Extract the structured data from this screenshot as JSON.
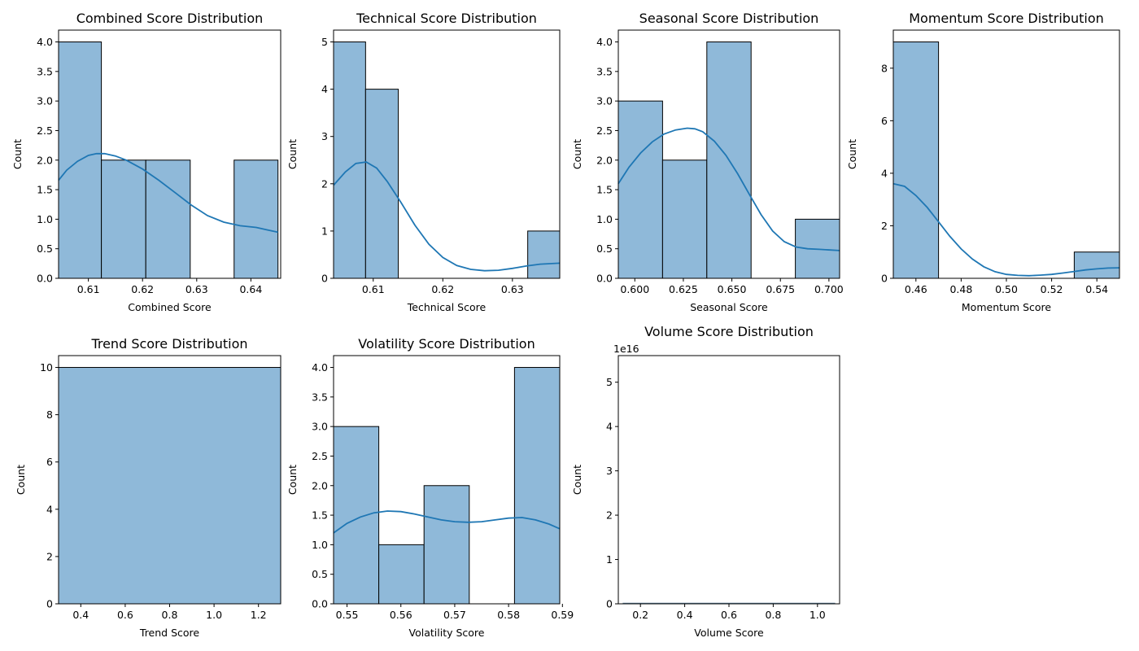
{
  "chart_data": [
    {
      "type": "histogram",
      "title": "Combined Score Distribution",
      "xlabel": "Combined Score",
      "ylabel": "Count",
      "xlim": [
        0.6045,
        0.6455
      ],
      "ylim": [
        0,
        4.2
      ],
      "xticks": [
        0.61,
        0.62,
        0.63,
        0.64
      ],
      "xtick_labels": [
        "0.61",
        "0.62",
        "0.63",
        "0.64"
      ],
      "yticks": [
        0,
        0.5,
        1,
        1.5,
        2,
        2.5,
        3,
        3.5,
        4
      ],
      "ytick_labels": [
        "0.0",
        "0.5",
        "1.0",
        "1.5",
        "2.0",
        "2.5",
        "3.0",
        "3.5",
        "4.0"
      ],
      "bin_edges": [
        0.6045,
        0.6124,
        0.6206,
        0.6288,
        0.6369,
        0.645
      ],
      "counts": [
        4,
        2,
        2,
        0,
        2
      ],
      "kde": {
        "x": [
          0.6045,
          0.606,
          0.608,
          0.61,
          0.6115,
          0.613,
          0.615,
          0.617,
          0.62,
          0.623,
          0.626,
          0.629,
          0.632,
          0.635,
          0.638,
          0.641,
          0.643,
          0.645
        ],
        "y": [
          1.66,
          1.83,
          1.98,
          2.08,
          2.11,
          2.11,
          2.07,
          2.0,
          1.85,
          1.66,
          1.45,
          1.24,
          1.06,
          0.95,
          0.89,
          0.86,
          0.82,
          0.78
        ]
      }
    },
    {
      "type": "histogram",
      "title": "Technical Score Distribution",
      "xlabel": "Technical Score",
      "ylabel": "Count",
      "xlim": [
        0.6043,
        0.6368
      ],
      "ylim": [
        0,
        5.25
      ],
      "xticks": [
        0.61,
        0.62,
        0.63
      ],
      "xtick_labels": [
        "0.61",
        "0.62",
        "0.63"
      ],
      "yticks": [
        0,
        1,
        2,
        3,
        4,
        5
      ],
      "ytick_labels": [
        "0",
        "1",
        "2",
        "3",
        "4",
        "5"
      ],
      "bin_edges": [
        0.6043,
        0.6089,
        0.6136,
        0.6182,
        0.6229,
        0.6275,
        0.6322,
        0.6368
      ],
      "counts": [
        5,
        4,
        0,
        0,
        0,
        0,
        1
      ],
      "kde": {
        "x": [
          0.6043,
          0.606,
          0.6075,
          0.609,
          0.6105,
          0.612,
          0.614,
          0.616,
          0.618,
          0.62,
          0.622,
          0.624,
          0.626,
          0.628,
          0.63,
          0.632,
          0.634,
          0.6368
        ],
        "y": [
          1.97,
          2.25,
          2.43,
          2.46,
          2.33,
          2.05,
          1.6,
          1.12,
          0.72,
          0.44,
          0.27,
          0.19,
          0.16,
          0.17,
          0.21,
          0.26,
          0.3,
          0.32
        ]
      }
    },
    {
      "type": "histogram",
      "title": "Seasonal Score Distribution",
      "xlabel": "Seasonal Score",
      "ylabel": "Count",
      "xlim": [
        0.5915,
        0.7055
      ],
      "ylim": [
        0,
        4.2
      ],
      "xticks": [
        0.6,
        0.625,
        0.65,
        0.675,
        0.7
      ],
      "xtick_labels": [
        "0.600",
        "0.625",
        "0.650",
        "0.675",
        "0.700"
      ],
      "yticks": [
        0,
        0.5,
        1,
        1.5,
        2,
        2.5,
        3,
        3.5,
        4
      ],
      "ytick_labels": [
        "0.0",
        "0.5",
        "1.0",
        "1.5",
        "2.0",
        "2.5",
        "3.0",
        "3.5",
        "4.0"
      ],
      "bin_edges": [
        0.5915,
        0.6143,
        0.6371,
        0.6599,
        0.6827,
        0.7055
      ],
      "counts": [
        3,
        2,
        4,
        0,
        1
      ],
      "kde": {
        "x": [
          0.5915,
          0.597,
          0.603,
          0.609,
          0.615,
          0.621,
          0.627,
          0.631,
          0.635,
          0.641,
          0.647,
          0.653,
          0.659,
          0.665,
          0.671,
          0.677,
          0.683,
          0.689,
          0.695,
          0.7055
        ],
        "y": [
          1.6,
          1.88,
          2.12,
          2.31,
          2.44,
          2.51,
          2.54,
          2.53,
          2.48,
          2.32,
          2.08,
          1.77,
          1.42,
          1.08,
          0.8,
          0.62,
          0.53,
          0.5,
          0.49,
          0.47
        ]
      }
    },
    {
      "type": "histogram",
      "title": "Momentum Score Distribution",
      "xlabel": "Momentum Score",
      "ylabel": "Count",
      "xlim": [
        0.45,
        0.55
      ],
      "ylim": [
        0,
        9.45
      ],
      "xticks": [
        0.46,
        0.48,
        0.5,
        0.52,
        0.54
      ],
      "xtick_labels": [
        "0.46",
        "0.48",
        "0.50",
        "0.52",
        "0.54"
      ],
      "yticks": [
        0,
        2,
        4,
        6,
        8
      ],
      "ytick_labels": [
        "0",
        "2",
        "4",
        "6",
        "8"
      ],
      "bin_edges": [
        0.45,
        0.47,
        0.49,
        0.51,
        0.53,
        0.55
      ],
      "counts": [
        9,
        0,
        0,
        0,
        1
      ],
      "kde": {
        "x": [
          0.45,
          0.455,
          0.46,
          0.465,
          0.47,
          0.475,
          0.48,
          0.485,
          0.49,
          0.495,
          0.5,
          0.505,
          0.51,
          0.515,
          0.52,
          0.525,
          0.53,
          0.535,
          0.54,
          0.545,
          0.55
        ],
        "y": [
          3.6,
          3.5,
          3.15,
          2.7,
          2.15,
          1.6,
          1.12,
          0.73,
          0.44,
          0.25,
          0.15,
          0.11,
          0.1,
          0.12,
          0.15,
          0.2,
          0.26,
          0.32,
          0.36,
          0.39,
          0.4
        ]
      }
    },
    {
      "type": "histogram",
      "title": "Trend Score Distribution",
      "xlabel": "Trend Score",
      "ylabel": "Count",
      "xlim": [
        0.3,
        1.3
      ],
      "ylim": [
        0,
        10.5
      ],
      "xticks": [
        0.4,
        0.6,
        0.8,
        1.0,
        1.2
      ],
      "xtick_labels": [
        "0.4",
        "0.6",
        "0.8",
        "1.0",
        "1.2"
      ],
      "yticks": [
        0,
        2,
        4,
        6,
        8,
        10
      ],
      "ytick_labels": [
        "0",
        "2",
        "4",
        "6",
        "8",
        "10"
      ],
      "bin_edges": [
        0.3,
        1.3
      ],
      "counts": [
        10
      ],
      "kde": null
    },
    {
      "type": "histogram",
      "title": "Volatility Score Distribution",
      "xlabel": "Volatility Score",
      "ylabel": "Count",
      "xlim": [
        0.5475,
        0.5895
      ],
      "ylim": [
        0,
        4.2
      ],
      "xticks": [
        0.55,
        0.56,
        0.57,
        0.58,
        0.59
      ],
      "xtick_labels": [
        "0.55",
        "0.56",
        "0.57",
        "0.58",
        "0.59"
      ],
      "yticks": [
        0,
        0.5,
        1,
        1.5,
        2,
        2.5,
        3,
        3.5,
        4
      ],
      "ytick_labels": [
        "0.0",
        "0.5",
        "1.0",
        "1.5",
        "2.0",
        "2.5",
        "3.0",
        "3.5",
        "4.0"
      ],
      "bin_edges": [
        0.5475,
        0.5559,
        0.5643,
        0.5727,
        0.5811,
        0.5895
      ],
      "counts": [
        3,
        1,
        2,
        0,
        4
      ],
      "kde": {
        "x": [
          0.5475,
          0.55,
          0.5525,
          0.555,
          0.5575,
          0.56,
          0.5625,
          0.565,
          0.5675,
          0.57,
          0.5725,
          0.575,
          0.5775,
          0.58,
          0.5825,
          0.585,
          0.5875,
          0.5895
        ],
        "y": [
          1.2,
          1.36,
          1.47,
          1.54,
          1.57,
          1.56,
          1.52,
          1.47,
          1.42,
          1.39,
          1.38,
          1.39,
          1.42,
          1.45,
          1.46,
          1.42,
          1.35,
          1.27
        ]
      }
    },
    {
      "type": "histogram",
      "title": "Volume Score Distribution",
      "xlabel": "Volume Score",
      "ylabel": "Count",
      "offset_label": "1e16",
      "xlim": [
        0.1,
        1.1
      ],
      "ylim": [
        0,
        5.6
      ],
      "xticks": [
        0.2,
        0.4,
        0.6,
        0.8,
        1.0
      ],
      "xtick_labels": [
        "0.2",
        "0.4",
        "0.6",
        "0.8",
        "1.0"
      ],
      "yticks": [
        0,
        1,
        2,
        3,
        4,
        5
      ],
      "ytick_labels": [
        "0",
        "1",
        "2",
        "3",
        "4",
        "5"
      ],
      "bin_edges": [
        0.1,
        1.1
      ],
      "counts": [
        0
      ],
      "baseline_segment": [
        0.12,
        1.08
      ],
      "kde": null
    }
  ]
}
